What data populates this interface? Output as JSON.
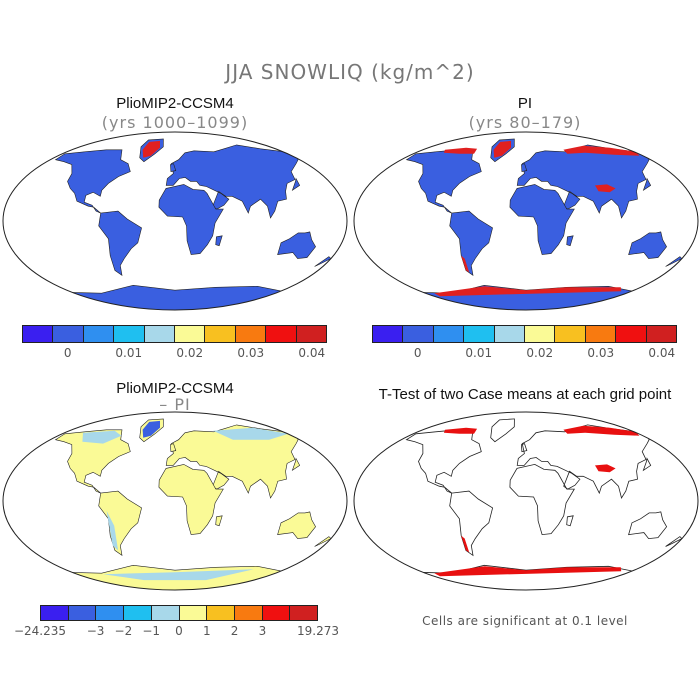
{
  "title": "JJA SNOWLIQ (kg/m^2)",
  "panels": {
    "top_left": {
      "title": "PlioMIP2-CCSM4",
      "subtitle": "(yrs 1000–1099)"
    },
    "top_right": {
      "title": "PI",
      "subtitle": "(yrs 80–179)"
    },
    "bottom_left": {
      "title": "PlioMIP2-CCSM4",
      "subtitle": "– PI"
    },
    "bottom_right": {
      "title": "T-Test of two Case means at each grid point",
      "note": "Cells are significant at 0.1 level"
    }
  },
  "colorbar_top": {
    "colors": [
      "#3a1ff0",
      "#3a5fe0",
      "#2f8ff0",
      "#1fbff0",
      "#a8d8ea",
      "#fafa96",
      "#f8c020",
      "#f87a10",
      "#f01010",
      "#d02020"
    ],
    "ticks": [
      "0",
      "0.01",
      "0.02",
      "0.03",
      "0.04"
    ]
  },
  "colorbar_bottom": {
    "colors": [
      "#3a1ff0",
      "#3a5fe0",
      "#2f8ff0",
      "#1fbff0",
      "#a8d8ea",
      "#fafa96",
      "#f8c020",
      "#f87a10",
      "#f01010",
      "#d02020"
    ],
    "ticks": [
      "−24.235",
      "−3",
      "−2",
      "−1",
      "0",
      "1",
      "2",
      "3",
      "19.273"
    ]
  },
  "colors": {
    "land_base_top": "#3a5fe0",
    "snow_high": "#e02020",
    "diff_base": "#fafa96",
    "diff_light": "#a8d8ea",
    "signif": "#e81010",
    "outline": "#222222"
  }
}
